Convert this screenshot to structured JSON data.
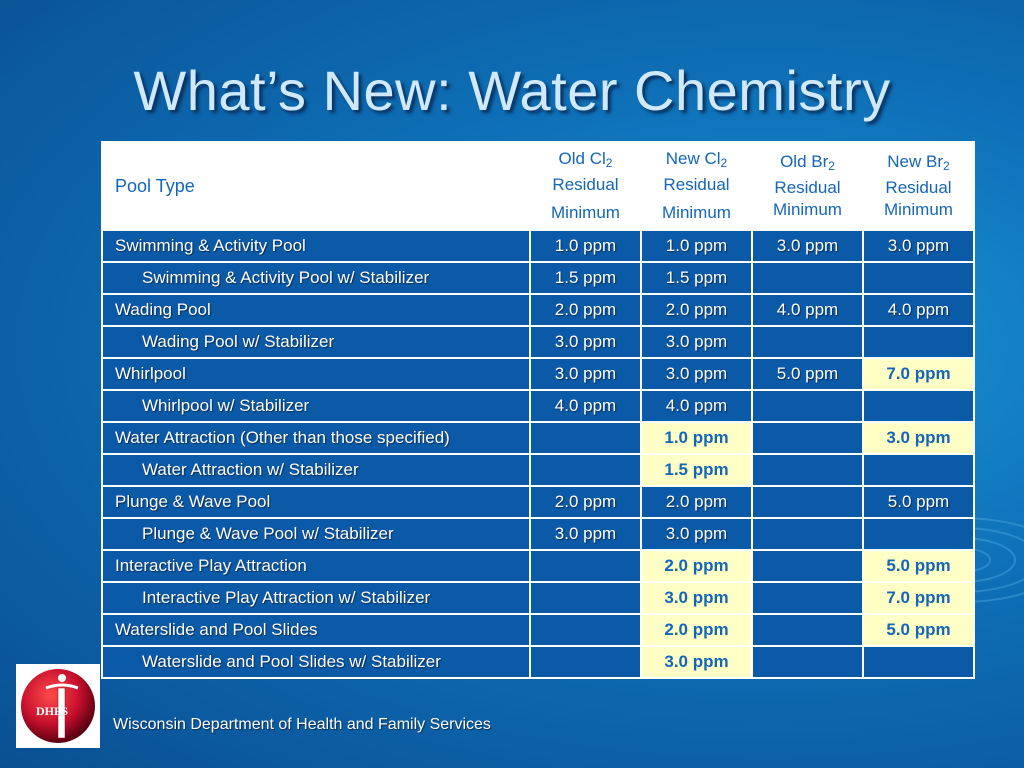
{
  "slide": {
    "title": "What’s New: Water Chemistry",
    "footer": "Wisconsin Department of Health and Family Services",
    "logo_text": "DHFS"
  },
  "colors": {
    "background": "#0e6fb6",
    "title_text": "#cfe9fb",
    "header_text": "#1466b8",
    "row_fill": "#0b5aa8",
    "highlight_fill": "#ffffc6",
    "logo_red": "#c8102e"
  },
  "table": {
    "headers": {
      "pool_type": "Pool Type",
      "old_cl": {
        "prefix": "Old Cl",
        "sub": "2",
        "line2": "Residual",
        "line3": "Minimum"
      },
      "new_cl": {
        "prefix": "New Cl",
        "sub": "2",
        "line2": "Residual",
        "line3": "Minimum"
      },
      "old_br": {
        "prefix": "Old Br",
        "sub": "2",
        "line2": "Residual",
        "line3": "Minimum"
      },
      "new_br": {
        "prefix": "New Br",
        "sub": "2",
        "line2": "Residual",
        "line3": "Minimum"
      }
    },
    "rows": [
      {
        "type": "Swimming & Activity Pool",
        "indent": false,
        "old_cl": "1.0 ppm",
        "new_cl": "1.0 ppm",
        "old_br": "3.0 ppm",
        "new_br": "3.0 ppm",
        "highlight": []
      },
      {
        "type": "Swimming & Activity Pool w/ Stabilizer",
        "indent": true,
        "old_cl": "1.5 ppm",
        "new_cl": "1.5 ppm",
        "old_br": "",
        "new_br": "",
        "highlight": []
      },
      {
        "type": "Wading Pool",
        "indent": false,
        "old_cl": "2.0 ppm",
        "new_cl": "2.0 ppm",
        "old_br": "4.0 ppm",
        "new_br": "4.0 ppm",
        "highlight": []
      },
      {
        "type": "Wading Pool w/ Stabilizer",
        "indent": true,
        "old_cl": "3.0 ppm",
        "new_cl": "3.0 ppm",
        "old_br": "",
        "new_br": "",
        "highlight": []
      },
      {
        "type": "Whirlpool",
        "indent": false,
        "old_cl": "3.0 ppm",
        "new_cl": "3.0 ppm",
        "old_br": "5.0 ppm",
        "new_br": "7.0 ppm",
        "highlight": [
          "new_br"
        ]
      },
      {
        "type": "Whirlpool w/ Stabilizer",
        "indent": true,
        "old_cl": "4.0 ppm",
        "new_cl": "4.0 ppm",
        "old_br": "",
        "new_br": "",
        "highlight": []
      },
      {
        "type": "Water Attraction (Other than those specified)",
        "indent": false,
        "old_cl": "",
        "new_cl": "1.0 ppm",
        "old_br": "",
        "new_br": "3.0 ppm",
        "highlight": [
          "new_cl",
          "new_br"
        ]
      },
      {
        "type": "Water Attraction w/ Stabilizer",
        "indent": true,
        "old_cl": "",
        "new_cl": "1.5 ppm",
        "old_br": "",
        "new_br": "",
        "highlight": [
          "new_cl"
        ]
      },
      {
        "type": "Plunge & Wave Pool",
        "indent": false,
        "old_cl": "2.0 ppm",
        "new_cl": "2.0 ppm",
        "old_br": "",
        "new_br": "5.0 ppm",
        "highlight": []
      },
      {
        "type": "Plunge & Wave Pool w/ Stabilizer",
        "indent": true,
        "old_cl": "3.0 ppm",
        "new_cl": "3.0 ppm",
        "old_br": "",
        "new_br": "",
        "highlight": []
      },
      {
        "type": "Interactive Play Attraction",
        "indent": false,
        "old_cl": "",
        "new_cl": "2.0 ppm",
        "old_br": "",
        "new_br": "5.0 ppm",
        "highlight": [
          "new_cl",
          "new_br"
        ]
      },
      {
        "type": "Interactive Play Attraction w/ Stabilizer",
        "indent": true,
        "old_cl": "",
        "new_cl": "3.0 ppm",
        "old_br": "",
        "new_br": "7.0 ppm",
        "highlight": [
          "new_cl",
          "new_br"
        ]
      },
      {
        "type": "Waterslide and Pool Slides",
        "indent": false,
        "old_cl": "",
        "new_cl": "2.0 ppm",
        "old_br": "",
        "new_br": "5.0 ppm",
        "highlight": [
          "new_cl",
          "new_br"
        ]
      },
      {
        "type": "Waterslide and Pool Slides w/ Stabilizer",
        "indent": true,
        "old_cl": "",
        "new_cl": "3.0 ppm",
        "old_br": "",
        "new_br": "",
        "highlight": [
          "new_cl"
        ]
      }
    ]
  }
}
